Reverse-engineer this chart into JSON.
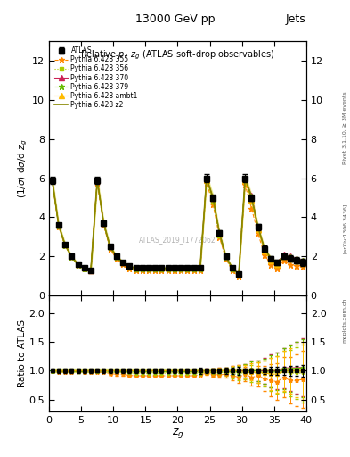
{
  "title_top": "13000 GeV pp",
  "title_right": "Jets",
  "plot_title": "Relative $p_T$ $z_g$ (ATLAS soft-drop observables)",
  "xlabel": "$z_g$",
  "ylabel_main": "$(1/\\sigma)$ d$\\sigma$/d $z_g$",
  "ylabel_ratio": "Ratio to ATLAS",
  "watermark": "ATLAS_2019_I1772062",
  "rivet_text": "Rivet 3.1.10, ≥ 3M events",
  "arxiv_text": "[arXiv:1306.3436]",
  "mcplots_text": "mcplots.cern.ch",
  "xlim": [
    0,
    40
  ],
  "ylim_main": [
    0,
    13
  ],
  "ylim_ratio": [
    0.3,
    2.3
  ],
  "yticks_main": [
    0,
    2,
    4,
    6,
    8,
    10,
    12
  ],
  "yticks_ratio": [
    0.5,
    1.0,
    1.5,
    2.0
  ],
  "xdata": [
    0.5,
    1.5,
    2.5,
    3.5,
    4.5,
    5.5,
    6.5,
    7.5,
    8.5,
    9.5,
    10.5,
    11.5,
    12.5,
    13.5,
    14.5,
    15.5,
    16.5,
    17.5,
    18.5,
    19.5,
    20.5,
    21.5,
    22.5,
    23.5,
    24.5,
    25.5,
    26.5,
    27.5,
    28.5,
    29.5,
    30.5,
    31.5,
    32.5,
    33.5,
    34.5,
    35.5,
    36.5,
    37.5,
    38.5,
    39.5
  ],
  "ydata_atlas": [
    5.9,
    3.6,
    2.6,
    2.0,
    1.6,
    1.4,
    1.3,
    5.9,
    3.7,
    2.5,
    2.0,
    1.7,
    1.5,
    1.4,
    1.4,
    1.4,
    1.4,
    1.4,
    1.4,
    1.4,
    1.4,
    1.4,
    1.4,
    1.4,
    6.0,
    5.0,
    3.2,
    2.0,
    1.4,
    1.1,
    6.0,
    5.0,
    3.5,
    2.4,
    1.9,
    1.7,
    2.0,
    1.9,
    1.8,
    1.7
  ],
  "yerr_atlas": [
    0.18,
    0.12,
    0.1,
    0.08,
    0.07,
    0.06,
    0.05,
    0.18,
    0.14,
    0.1,
    0.08,
    0.07,
    0.06,
    0.06,
    0.06,
    0.06,
    0.06,
    0.06,
    0.06,
    0.06,
    0.06,
    0.06,
    0.06,
    0.07,
    0.22,
    0.18,
    0.14,
    0.1,
    0.08,
    0.07,
    0.22,
    0.18,
    0.15,
    0.14,
    0.12,
    0.12,
    0.14,
    0.15,
    0.16,
    0.18
  ],
  "series": [
    {
      "name": "355",
      "color": "#ff8800",
      "marker": "*",
      "markersize": 5,
      "linestyle": "--",
      "label": "Pythia 6.428 355"
    },
    {
      "name": "356",
      "color": "#aacc00",
      "marker": "s",
      "markersize": 3,
      "linestyle": ":",
      "label": "Pythia 6.428 356"
    },
    {
      "name": "370",
      "color": "#cc2255",
      "marker": "^",
      "markersize": 4,
      "linestyle": "-",
      "label": "Pythia 6.428 370"
    },
    {
      "name": "379",
      "color": "#66bb00",
      "marker": "*",
      "markersize": 5,
      "linestyle": "-.",
      "label": "Pythia 6.428 379"
    },
    {
      "name": "ambt1",
      "color": "#ffbb00",
      "marker": "^",
      "markersize": 4,
      "linestyle": "-",
      "label": "Pythia 6.428 ambt1"
    },
    {
      "name": "z2",
      "color": "#888800",
      "marker": null,
      "markersize": 0,
      "linestyle": "-",
      "label": "Pythia 6.428 z2"
    }
  ],
  "ydata_355": [
    5.85,
    3.52,
    2.55,
    1.96,
    1.58,
    1.37,
    1.27,
    5.75,
    3.6,
    2.38,
    1.88,
    1.6,
    1.38,
    1.28,
    1.28,
    1.28,
    1.28,
    1.28,
    1.28,
    1.28,
    1.28,
    1.28,
    1.28,
    1.3,
    5.75,
    4.68,
    2.98,
    1.88,
    1.28,
    0.98,
    5.65,
    4.45,
    3.18,
    2.08,
    1.58,
    1.38,
    1.78,
    1.58,
    1.5,
    1.45
  ],
  "ydata_356": [
    5.88,
    3.58,
    2.58,
    1.98,
    1.6,
    1.39,
    1.29,
    5.88,
    3.68,
    2.45,
    1.95,
    1.65,
    1.43,
    1.33,
    1.33,
    1.33,
    1.33,
    1.33,
    1.33,
    1.33,
    1.33,
    1.33,
    1.33,
    1.33,
    5.88,
    4.78,
    3.08,
    1.95,
    1.33,
    1.03,
    5.88,
    4.78,
    3.38,
    2.28,
    1.78,
    1.58,
    1.98,
    1.82,
    1.72,
    1.62
  ],
  "ydata_370": [
    5.9,
    3.6,
    2.6,
    2.0,
    1.6,
    1.4,
    1.3,
    5.9,
    3.7,
    2.5,
    2.0,
    1.7,
    1.5,
    1.4,
    1.4,
    1.4,
    1.4,
    1.4,
    1.4,
    1.4,
    1.4,
    1.4,
    1.4,
    1.4,
    6.0,
    5.0,
    3.2,
    2.0,
    1.4,
    1.1,
    6.0,
    5.1,
    3.5,
    2.4,
    1.9,
    1.7,
    2.1,
    2.0,
    1.9,
    1.8
  ],
  "ydata_379": [
    5.88,
    3.58,
    2.58,
    1.98,
    1.58,
    1.38,
    1.28,
    5.88,
    3.68,
    2.48,
    1.98,
    1.68,
    1.48,
    1.38,
    1.38,
    1.38,
    1.38,
    1.38,
    1.38,
    1.38,
    1.38,
    1.38,
    1.38,
    1.38,
    5.98,
    4.98,
    3.18,
    1.98,
    1.38,
    1.08,
    5.98,
    5.08,
    3.48,
    2.38,
    1.88,
    1.68,
    2.08,
    1.98,
    1.88,
    1.78
  ],
  "ydata_ambt1": [
    5.9,
    3.6,
    2.6,
    2.0,
    1.6,
    1.4,
    1.3,
    5.9,
    3.7,
    2.5,
    2.0,
    1.7,
    1.5,
    1.4,
    1.4,
    1.4,
    1.4,
    1.4,
    1.4,
    1.4,
    1.4,
    1.4,
    1.4,
    1.4,
    5.9,
    5.0,
    3.2,
    2.0,
    1.4,
    1.1,
    5.9,
    4.9,
    3.4,
    2.3,
    1.8,
    1.6,
    2.0,
    1.9,
    1.8,
    1.7
  ],
  "ydata_z2": [
    5.9,
    3.6,
    2.6,
    2.0,
    1.6,
    1.4,
    1.3,
    5.9,
    3.7,
    2.5,
    2.0,
    1.7,
    1.5,
    1.4,
    1.4,
    1.4,
    1.4,
    1.4,
    1.4,
    1.4,
    1.4,
    1.4,
    1.4,
    1.4,
    6.0,
    5.0,
    3.2,
    2.0,
    1.4,
    1.1,
    6.0,
    5.0,
    3.5,
    2.4,
    1.9,
    1.7,
    2.0,
    1.9,
    1.8,
    1.7
  ],
  "yerr_mc_early": 0.05,
  "ratio_yerr_355": [
    0.02,
    0.02,
    0.02,
    0.02,
    0.02,
    0.02,
    0.02,
    0.02,
    0.02,
    0.02,
    0.02,
    0.02,
    0.02,
    0.02,
    0.02,
    0.02,
    0.02,
    0.02,
    0.02,
    0.02,
    0.02,
    0.02,
    0.02,
    0.02,
    0.03,
    0.04,
    0.05,
    0.06,
    0.08,
    0.1,
    0.12,
    0.15,
    0.18,
    0.22,
    0.28,
    0.32,
    0.35,
    0.4,
    0.45,
    0.5
  ],
  "ratio_yerr_356": [
    0.02,
    0.02,
    0.02,
    0.02,
    0.02,
    0.02,
    0.02,
    0.02,
    0.02,
    0.02,
    0.02,
    0.02,
    0.02,
    0.02,
    0.02,
    0.02,
    0.02,
    0.02,
    0.02,
    0.02,
    0.02,
    0.02,
    0.02,
    0.02,
    0.03,
    0.04,
    0.05,
    0.06,
    0.08,
    0.1,
    0.12,
    0.15,
    0.18,
    0.22,
    0.28,
    0.32,
    0.35,
    0.4,
    0.45,
    0.5
  ],
  "ratio_yerr_370": [
    0.02,
    0.02,
    0.02,
    0.02,
    0.02,
    0.02,
    0.02,
    0.02,
    0.02,
    0.02,
    0.02,
    0.02,
    0.02,
    0.02,
    0.02,
    0.02,
    0.02,
    0.02,
    0.02,
    0.02,
    0.02,
    0.02,
    0.02,
    0.02,
    0.03,
    0.04,
    0.05,
    0.06,
    0.08,
    0.1,
    0.12,
    0.15,
    0.18,
    0.22,
    0.28,
    0.32,
    0.35,
    0.4,
    0.45,
    0.5
  ],
  "ratio_yerr_379": [
    0.02,
    0.02,
    0.02,
    0.02,
    0.02,
    0.02,
    0.02,
    0.02,
    0.02,
    0.02,
    0.02,
    0.02,
    0.02,
    0.02,
    0.02,
    0.02,
    0.02,
    0.02,
    0.02,
    0.02,
    0.02,
    0.02,
    0.02,
    0.02,
    0.03,
    0.04,
    0.05,
    0.06,
    0.08,
    0.1,
    0.12,
    0.15,
    0.18,
    0.22,
    0.28,
    0.32,
    0.35,
    0.4,
    0.45,
    0.5
  ],
  "ratio_yerr_ambt1": [
    0.02,
    0.02,
    0.02,
    0.02,
    0.02,
    0.02,
    0.02,
    0.02,
    0.02,
    0.02,
    0.02,
    0.02,
    0.02,
    0.02,
    0.02,
    0.02,
    0.02,
    0.02,
    0.02,
    0.02,
    0.02,
    0.02,
    0.02,
    0.02,
    0.03,
    0.04,
    0.05,
    0.06,
    0.08,
    0.1,
    0.12,
    0.15,
    0.18,
    0.22,
    0.28,
    0.32,
    0.35,
    0.4,
    0.45,
    0.5
  ]
}
